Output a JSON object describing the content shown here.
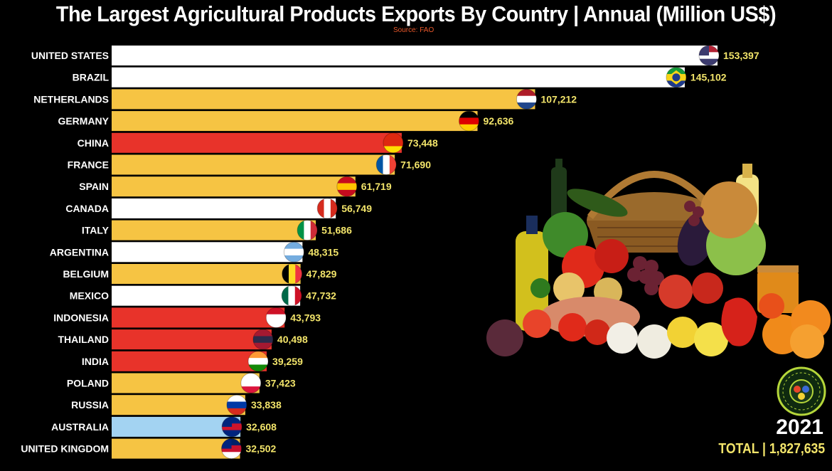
{
  "title": "The Largest Agricultural Products Exports By Country | Annual (Million US$)",
  "source": "Source: FAO",
  "year": "2021",
  "total": "TOTAL | 1,827,635",
  "badge_text": "CITYGLOBETOUR",
  "chart_data": {
    "type": "bar",
    "orientation": "horizontal",
    "categories": [
      "UNITED STATES",
      "BRAZIL",
      "NETHERLANDS",
      "GERMANY",
      "CHINA",
      "FRANCE",
      "SPAIN",
      "CANADA",
      "ITALY",
      "ARGENTINA",
      "BELGIUM",
      "MEXICO",
      "INDONESIA",
      "THAILAND",
      "INDIA",
      "POLAND",
      "RUSSIA",
      "AUSTRALIA",
      "UNITED KINGDOM"
    ],
    "values": [
      153397,
      145102,
      107212,
      92636,
      73448,
      71690,
      61719,
      56749,
      51686,
      48315,
      47829,
      47732,
      43793,
      40498,
      39259,
      37423,
      33838,
      32608,
      32502
    ],
    "value_labels": [
      "153,397",
      "145,102",
      "107,212",
      "92,636",
      "73,448",
      "71,690",
      "61,719",
      "56,749",
      "51,686",
      "48,315",
      "47,829",
      "47,732",
      "43,793",
      "40,498",
      "39,259",
      "37,423",
      "33,838",
      "32,608",
      "32,502"
    ],
    "bar_colors": [
      "#ffffff",
      "#ffffff",
      "#f6c443",
      "#f6c443",
      "#e8332a",
      "#f6c443",
      "#f6c443",
      "#ffffff",
      "#f6c443",
      "#ffffff",
      "#f6c443",
      "#ffffff",
      "#e8332a",
      "#e8332a",
      "#e8332a",
      "#f6c443",
      "#f6c443",
      "#a3d3f2",
      "#f6c443"
    ],
    "flag_icons": [
      "us-flag-icon",
      "brazil-flag-icon",
      "netherlands-flag-icon",
      "germany-flag-icon",
      "china-flag-icon",
      "france-flag-icon",
      "spain-flag-icon",
      "canada-flag-icon",
      "italy-flag-icon",
      "argentina-flag-icon",
      "belgium-flag-icon",
      "mexico-flag-icon",
      "indonesia-flag-icon",
      "thailand-flag-icon",
      "india-flag-icon",
      "poland-flag-icon",
      "russia-flag-icon",
      "australia-flag-icon",
      "uk-flag-icon"
    ],
    "xlim": [
      0,
      153397
    ],
    "value_label_color": "#f2e46a"
  }
}
